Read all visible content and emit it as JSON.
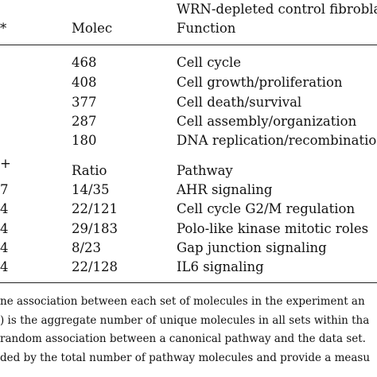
{
  "header": {
    "title": "WRN-depleted control fibrobla",
    "left_mark": "*",
    "col_molec": "Molec",
    "col_function": "Function"
  },
  "section1": {
    "rows": [
      {
        "molec": "468",
        "function": "Cell cycle"
      },
      {
        "molec": "408",
        "function": "Cell growth/proliferation"
      },
      {
        "molec": "377",
        "function": "Cell death/survival"
      },
      {
        "molec": "287",
        "function": "Cell assembly/organization"
      },
      {
        "molec": "180",
        "function": "DNA replication/recombination"
      }
    ]
  },
  "section2": {
    "left_mark": "+",
    "col_ratio": "Ratio",
    "col_pathway": "Pathway",
    "rows": [
      {
        "left": "7",
        "ratio": "14/35",
        "pathway": "AHR signaling"
      },
      {
        "left": "4",
        "ratio": "22/121",
        "pathway": "Cell cycle G2/M regulation"
      },
      {
        "left": "4",
        "ratio": "29/183",
        "pathway": "Polo-like kinase mitotic roles"
      },
      {
        "left": "4",
        "ratio": "8/23",
        "pathway": "Gap junction signaling"
      },
      {
        "left": "4",
        "ratio": "22/128",
        "pathway": "IL6 signaling"
      }
    ]
  },
  "footnotes": [
    "ne association between each set of molecules in the experiment an",
    ") is the aggregate number of unique molecules in all sets within tha",
    "random association between a canonical pathway and the data set.",
    "ded by the total number of pathway molecules and provide a measu"
  ]
}
